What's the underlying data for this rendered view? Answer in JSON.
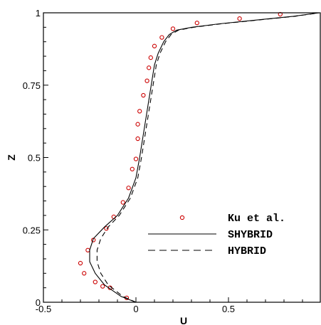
{
  "chart_data": {
    "type": "line",
    "title": "",
    "xlabel": "U",
    "ylabel": "Z",
    "xlim": [
      -0.5,
      1.0
    ],
    "ylim": [
      0,
      1
    ],
    "x_ticks": [
      -0.5,
      0,
      0.5
    ],
    "x_tick_labels": [
      "-0.5",
      "0",
      "0.5"
    ],
    "y_ticks": [
      0,
      0.25,
      0.5,
      0.75,
      1
    ],
    "y_tick_labels": [
      "0",
      "0.25",
      "0.5",
      "0.75",
      "1"
    ],
    "grid": false,
    "legend_position": "lower-right",
    "series": [
      {
        "name": "Ku et al.",
        "style": "markers",
        "marker": "circle",
        "color": "#cc0000",
        "x": [
          -0.05,
          -0.14,
          -0.18,
          -0.22,
          -0.28,
          -0.3,
          -0.26,
          -0.23,
          -0.16,
          -0.12,
          -0.07,
          -0.04,
          -0.02,
          0.0,
          0.01,
          0.01,
          0.02,
          0.04,
          0.06,
          0.07,
          0.08,
          0.1,
          0.14,
          0.2,
          0.33,
          0.56,
          0.78
        ],
        "y": [
          0.015,
          0.05,
          0.055,
          0.07,
          0.1,
          0.135,
          0.18,
          0.215,
          0.255,
          0.295,
          0.345,
          0.395,
          0.46,
          0.495,
          0.565,
          0.615,
          0.66,
          0.715,
          0.765,
          0.81,
          0.845,
          0.885,
          0.915,
          0.945,
          0.965,
          0.98,
          0.995
        ]
      },
      {
        "name": "SHYBRID",
        "style": "solid",
        "color": "#000000",
        "x": [
          0.0,
          -0.08,
          -0.17,
          -0.22,
          -0.25,
          -0.25,
          -0.23,
          -0.17,
          -0.1,
          -0.04,
          0.0,
          0.02,
          0.04,
          0.06,
          0.08,
          0.1,
          0.12,
          0.15,
          0.18,
          0.22,
          0.3,
          0.45,
          0.65,
          0.85,
          0.99
        ],
        "y": [
          0.0,
          0.02,
          0.06,
          0.1,
          0.14,
          0.18,
          0.22,
          0.26,
          0.3,
          0.36,
          0.43,
          0.5,
          0.58,
          0.66,
          0.74,
          0.82,
          0.86,
          0.9,
          0.925,
          0.94,
          0.95,
          0.962,
          0.975,
          0.988,
          1.0
        ]
      },
      {
        "name": "HYBRID",
        "style": "dashed",
        "color": "#000000",
        "x": [
          0.0,
          -0.07,
          -0.15,
          -0.19,
          -0.21,
          -0.21,
          -0.19,
          -0.15,
          -0.09,
          -0.03,
          0.01,
          0.03,
          0.05,
          0.07,
          0.09,
          0.11,
          0.13,
          0.16,
          0.19,
          0.23,
          0.31,
          0.46,
          0.66,
          0.86,
          0.99
        ],
        "y": [
          0.0,
          0.02,
          0.06,
          0.1,
          0.14,
          0.18,
          0.22,
          0.26,
          0.3,
          0.36,
          0.43,
          0.5,
          0.58,
          0.66,
          0.74,
          0.82,
          0.86,
          0.9,
          0.925,
          0.94,
          0.95,
          0.962,
          0.975,
          0.988,
          1.0
        ]
      }
    ]
  }
}
